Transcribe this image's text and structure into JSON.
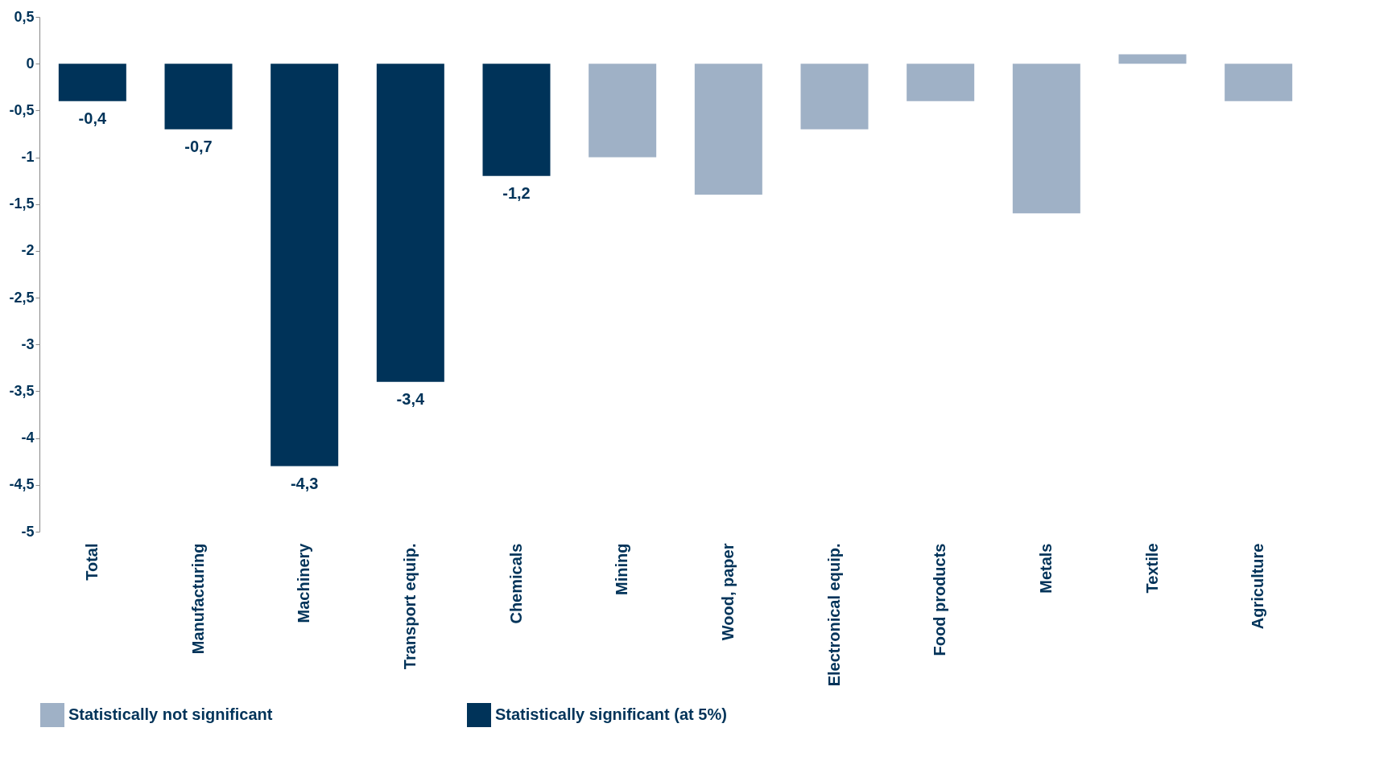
{
  "chart_data": {
    "type": "bar",
    "categories": [
      "Total",
      "Manufacturing",
      "Machinery",
      "Transport equip.",
      "Chemicals",
      "Mining",
      "Wood, paper",
      "Electronical equip.",
      "Food products",
      "Metals",
      "Textile",
      "Agriculture"
    ],
    "series": [
      {
        "name": "Statistically not significant",
        "color": "#9fb1c6",
        "values": [
          null,
          null,
          null,
          null,
          null,
          -1.0,
          -1.4,
          -0.7,
          -0.4,
          -1.6,
          0.1,
          -0.4
        ]
      },
      {
        "name": "Statistically significant (at 5%)",
        "color": "#003359",
        "values": [
          -0.4,
          -0.7,
          -4.3,
          -3.4,
          -1.2,
          null,
          null,
          null,
          null,
          null,
          null,
          null
        ],
        "value_labels": [
          "-0,4",
          "-0,7",
          "-4,3",
          "-3,4",
          "-1,2",
          null,
          null,
          null,
          null,
          null,
          null,
          null
        ]
      }
    ],
    "ylim": [
      -5,
      0.5
    ],
    "yticks": [
      {
        "value": 0.5,
        "label": "0,5"
      },
      0,
      {
        "value": -0.5,
        "label": "-0,5"
      },
      -1,
      {
        "value": -1.5,
        "label": "-1,5"
      },
      -2,
      {
        "value": -2.5,
        "label": "-2,5"
      },
      -3,
      {
        "value": -3.5,
        "label": "-3,5"
      },
      -4,
      {
        "value": -4.5,
        "label": "-4,5"
      },
      -5
    ],
    "grid": false,
    "legend": "bottom"
  }
}
